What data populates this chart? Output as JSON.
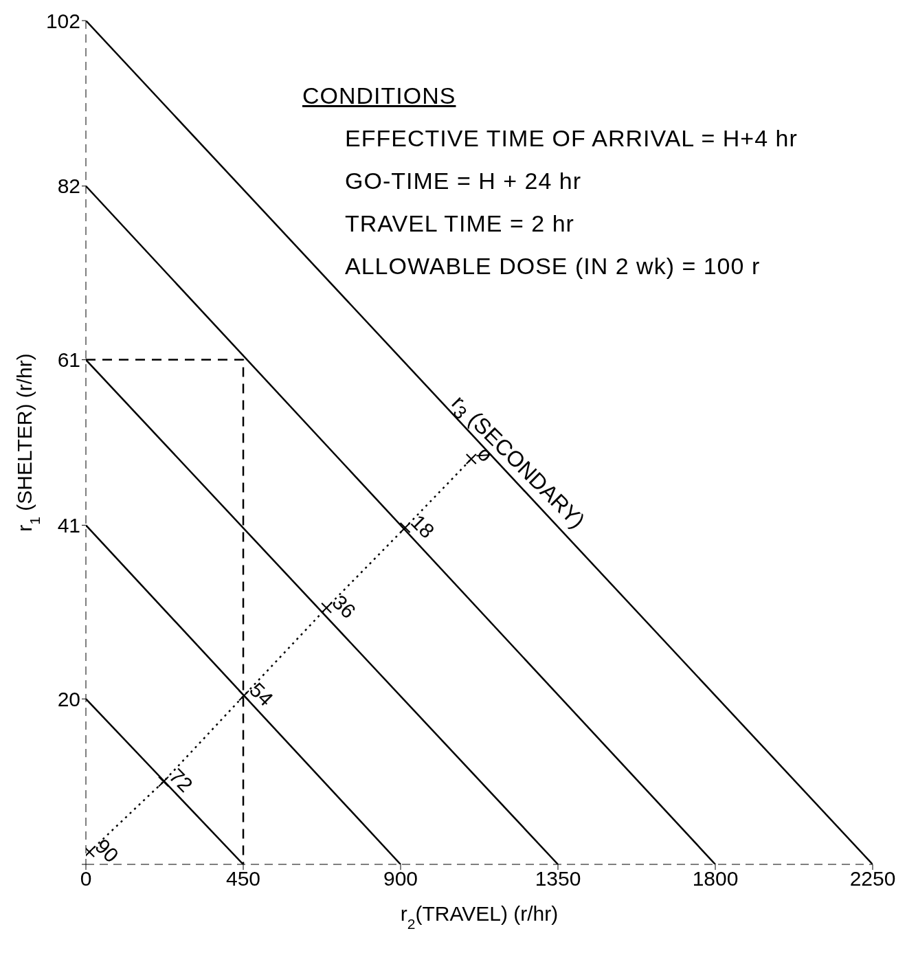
{
  "chart_data": {
    "type": "line",
    "xlabel": "r$_{2}$(TRAVEL) (r/hr)",
    "ylabel": "r$_{1}$ (SHELTER) (r/hr)",
    "xlim": [
      0,
      2250
    ],
    "ylim": [
      0,
      102
    ],
    "xticks": [
      0,
      450,
      900,
      1350,
      1800,
      2250
    ],
    "yticks": [
      {
        "value": 0,
        "label": null
      },
      20,
      41,
      61,
      82,
      102
    ],
    "marker": "none",
    "line_style": "solid",
    "series": [
      {
        "color": "#000000",
        "x": [
          0,
          450
        ],
        "values": [
          20,
          0
        ]
      },
      {
        "color": "#000000",
        "x": [
          0,
          900
        ],
        "values": [
          41,
          0
        ]
      },
      {
        "color": "#000000",
        "x": [
          0,
          1350
        ],
        "values": [
          61,
          0
        ]
      },
      {
        "color": "#000000",
        "x": [
          0,
          1800
        ],
        "values": [
          82,
          0
        ]
      },
      {
        "color": "#000000",
        "x": [
          0,
          2250
        ],
        "values": [
          102,
          0
        ]
      },
      {
        "color": "#000000",
        "line_style": "dashed",
        "x": [
          0,
          450,
          450
        ],
        "values": [
          61,
          61,
          0
        ]
      },
      {
        "color": "#000000",
        "line_style": "dotted",
        "marker": "cross",
        "x": [
          10,
          222,
          452,
          688,
          913,
          1102
        ],
        "values": [
          1.5,
          10,
          20.4,
          31,
          40.7,
          49
        ]
      }
    ],
    "annotations": [
      "CONDITIONS",
      "EFFECTIVE TIME OF ARRIVAL = H+4 hr",
      "GO-TIME = H + 24 hr",
      "TRAVEL TIME = 2 hr",
      "ALLOWABLE DOSE (IN 2 wk) = 100 r",
      "r$_{3}$ (SECONDARY)",
      {
        "text": "90",
        "x": 10,
        "y": 1.5
      },
      {
        "text": "72",
        "x": 222,
        "y": 10
      },
      {
        "text": "54",
        "x": 452,
        "y": 20.4
      },
      {
        "text": "36",
        "x": 688,
        "y": 31
      },
      {
        "text": "18",
        "x": 913,
        "y": 40.7
      },
      {
        "text": "ø",
        "x": 1102,
        "y": 49
      }
    ]
  }
}
